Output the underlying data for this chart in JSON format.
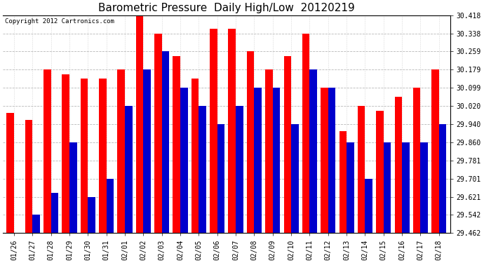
{
  "title": "Barometric Pressure  Daily High/Low  20120219",
  "copyright": "Copyright 2012 Cartronics.com",
  "dates": [
    "01/26",
    "01/27",
    "01/28",
    "01/29",
    "01/30",
    "01/31",
    "02/01",
    "02/02",
    "02/03",
    "02/04",
    "02/05",
    "02/06",
    "02/07",
    "02/08",
    "02/09",
    "02/10",
    "02/11",
    "02/12",
    "02/13",
    "02/14",
    "02/15",
    "02/16",
    "02/17",
    "02/18"
  ],
  "highs": [
    29.99,
    29.96,
    30.18,
    30.16,
    30.14,
    30.14,
    30.179,
    30.418,
    30.338,
    30.24,
    30.14,
    30.36,
    30.36,
    30.259,
    30.179,
    30.24,
    30.338,
    30.099,
    29.91,
    30.02,
    30.0,
    30.06,
    30.099,
    30.179
  ],
  "lows": [
    29.462,
    29.542,
    29.64,
    29.86,
    29.62,
    29.7,
    30.02,
    30.179,
    30.259,
    30.099,
    30.02,
    29.94,
    30.02,
    30.099,
    30.099,
    29.94,
    30.179,
    30.099,
    29.86,
    29.701,
    29.86,
    29.86,
    29.86,
    29.94
  ],
  "ylim_min": 29.462,
  "ylim_max": 30.418,
  "yticks": [
    29.462,
    29.542,
    29.621,
    29.701,
    29.781,
    29.86,
    29.94,
    30.02,
    30.099,
    30.179,
    30.259,
    30.338,
    30.418
  ],
  "high_color": "#ff0000",
  "low_color": "#0000cc",
  "bg_color": "#ffffff",
  "grid_color": "#b0b0b0",
  "title_fontsize": 11,
  "tick_fontsize": 7,
  "bar_width": 0.4,
  "figwidth": 6.9,
  "figheight": 3.75,
  "dpi": 100
}
